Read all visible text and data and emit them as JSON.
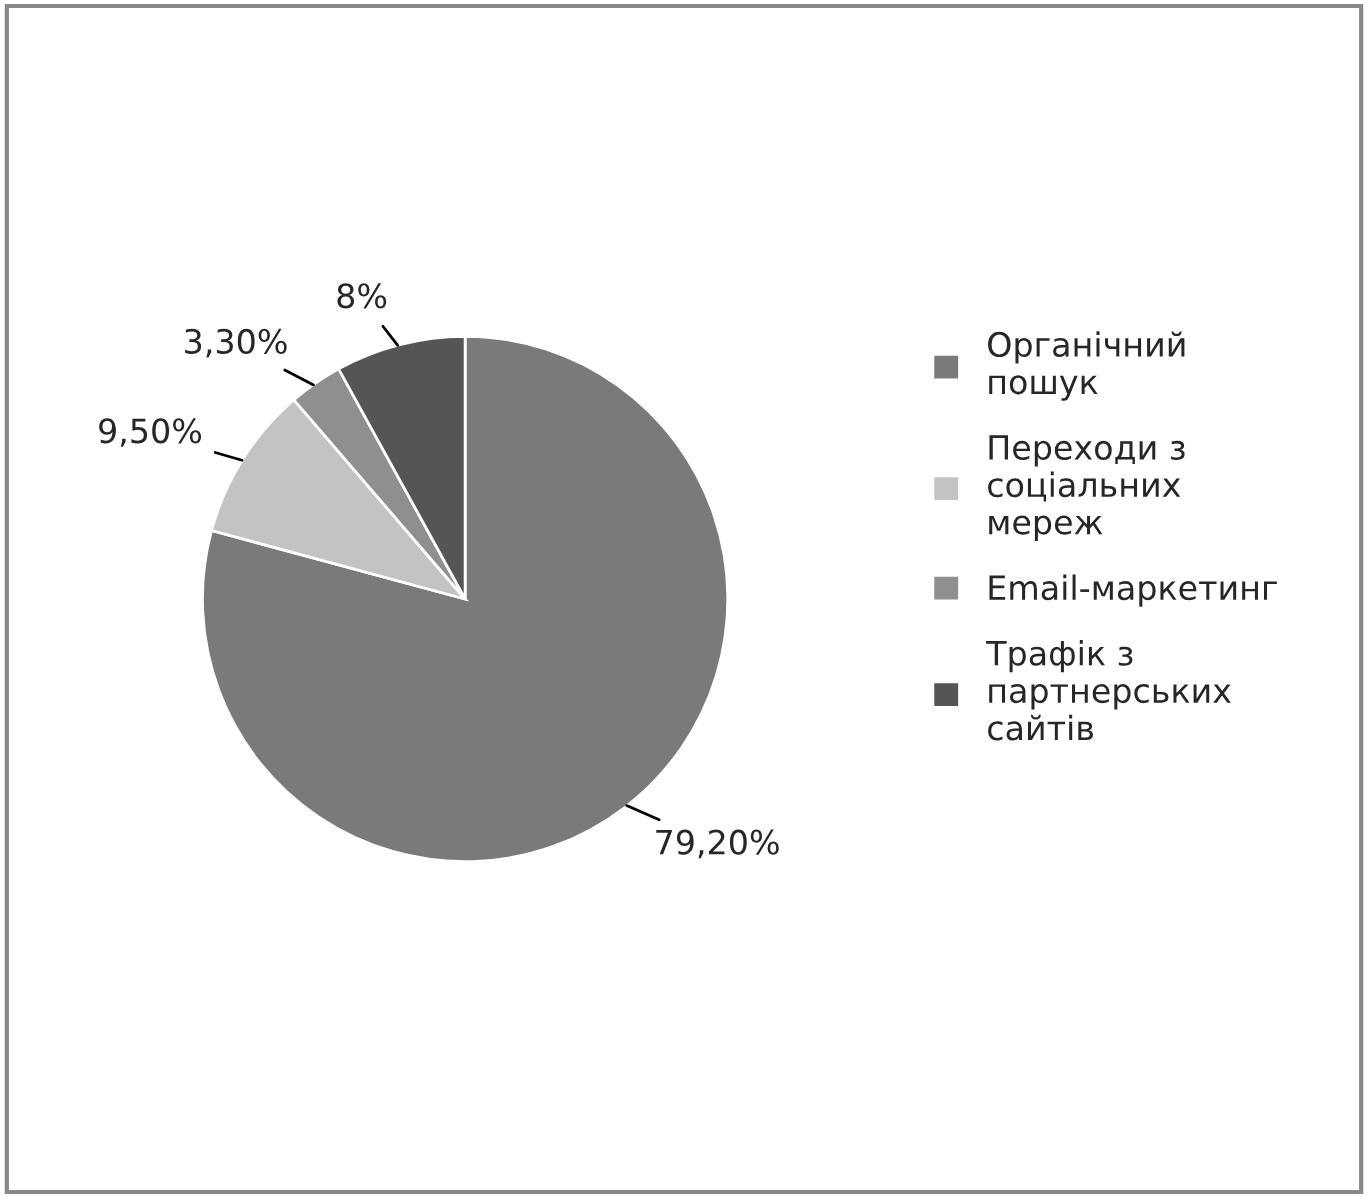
{
  "chart_data": {
    "type": "pie",
    "categories": [
      "Органічний пошук",
      "Переходи з соціальних мереж",
      "Email-маркетинг",
      "Трафік з партнерських сайтів"
    ],
    "values": [
      79.2,
      9.5,
      3.3,
      8
    ],
    "value_labels": [
      "79,20%",
      "9,50%",
      "3,30%",
      "8%"
    ],
    "colors": [
      "#7a7a7a",
      "#c3c3c3",
      "#8f8f8f",
      "#555555"
    ],
    "legend": "right"
  }
}
